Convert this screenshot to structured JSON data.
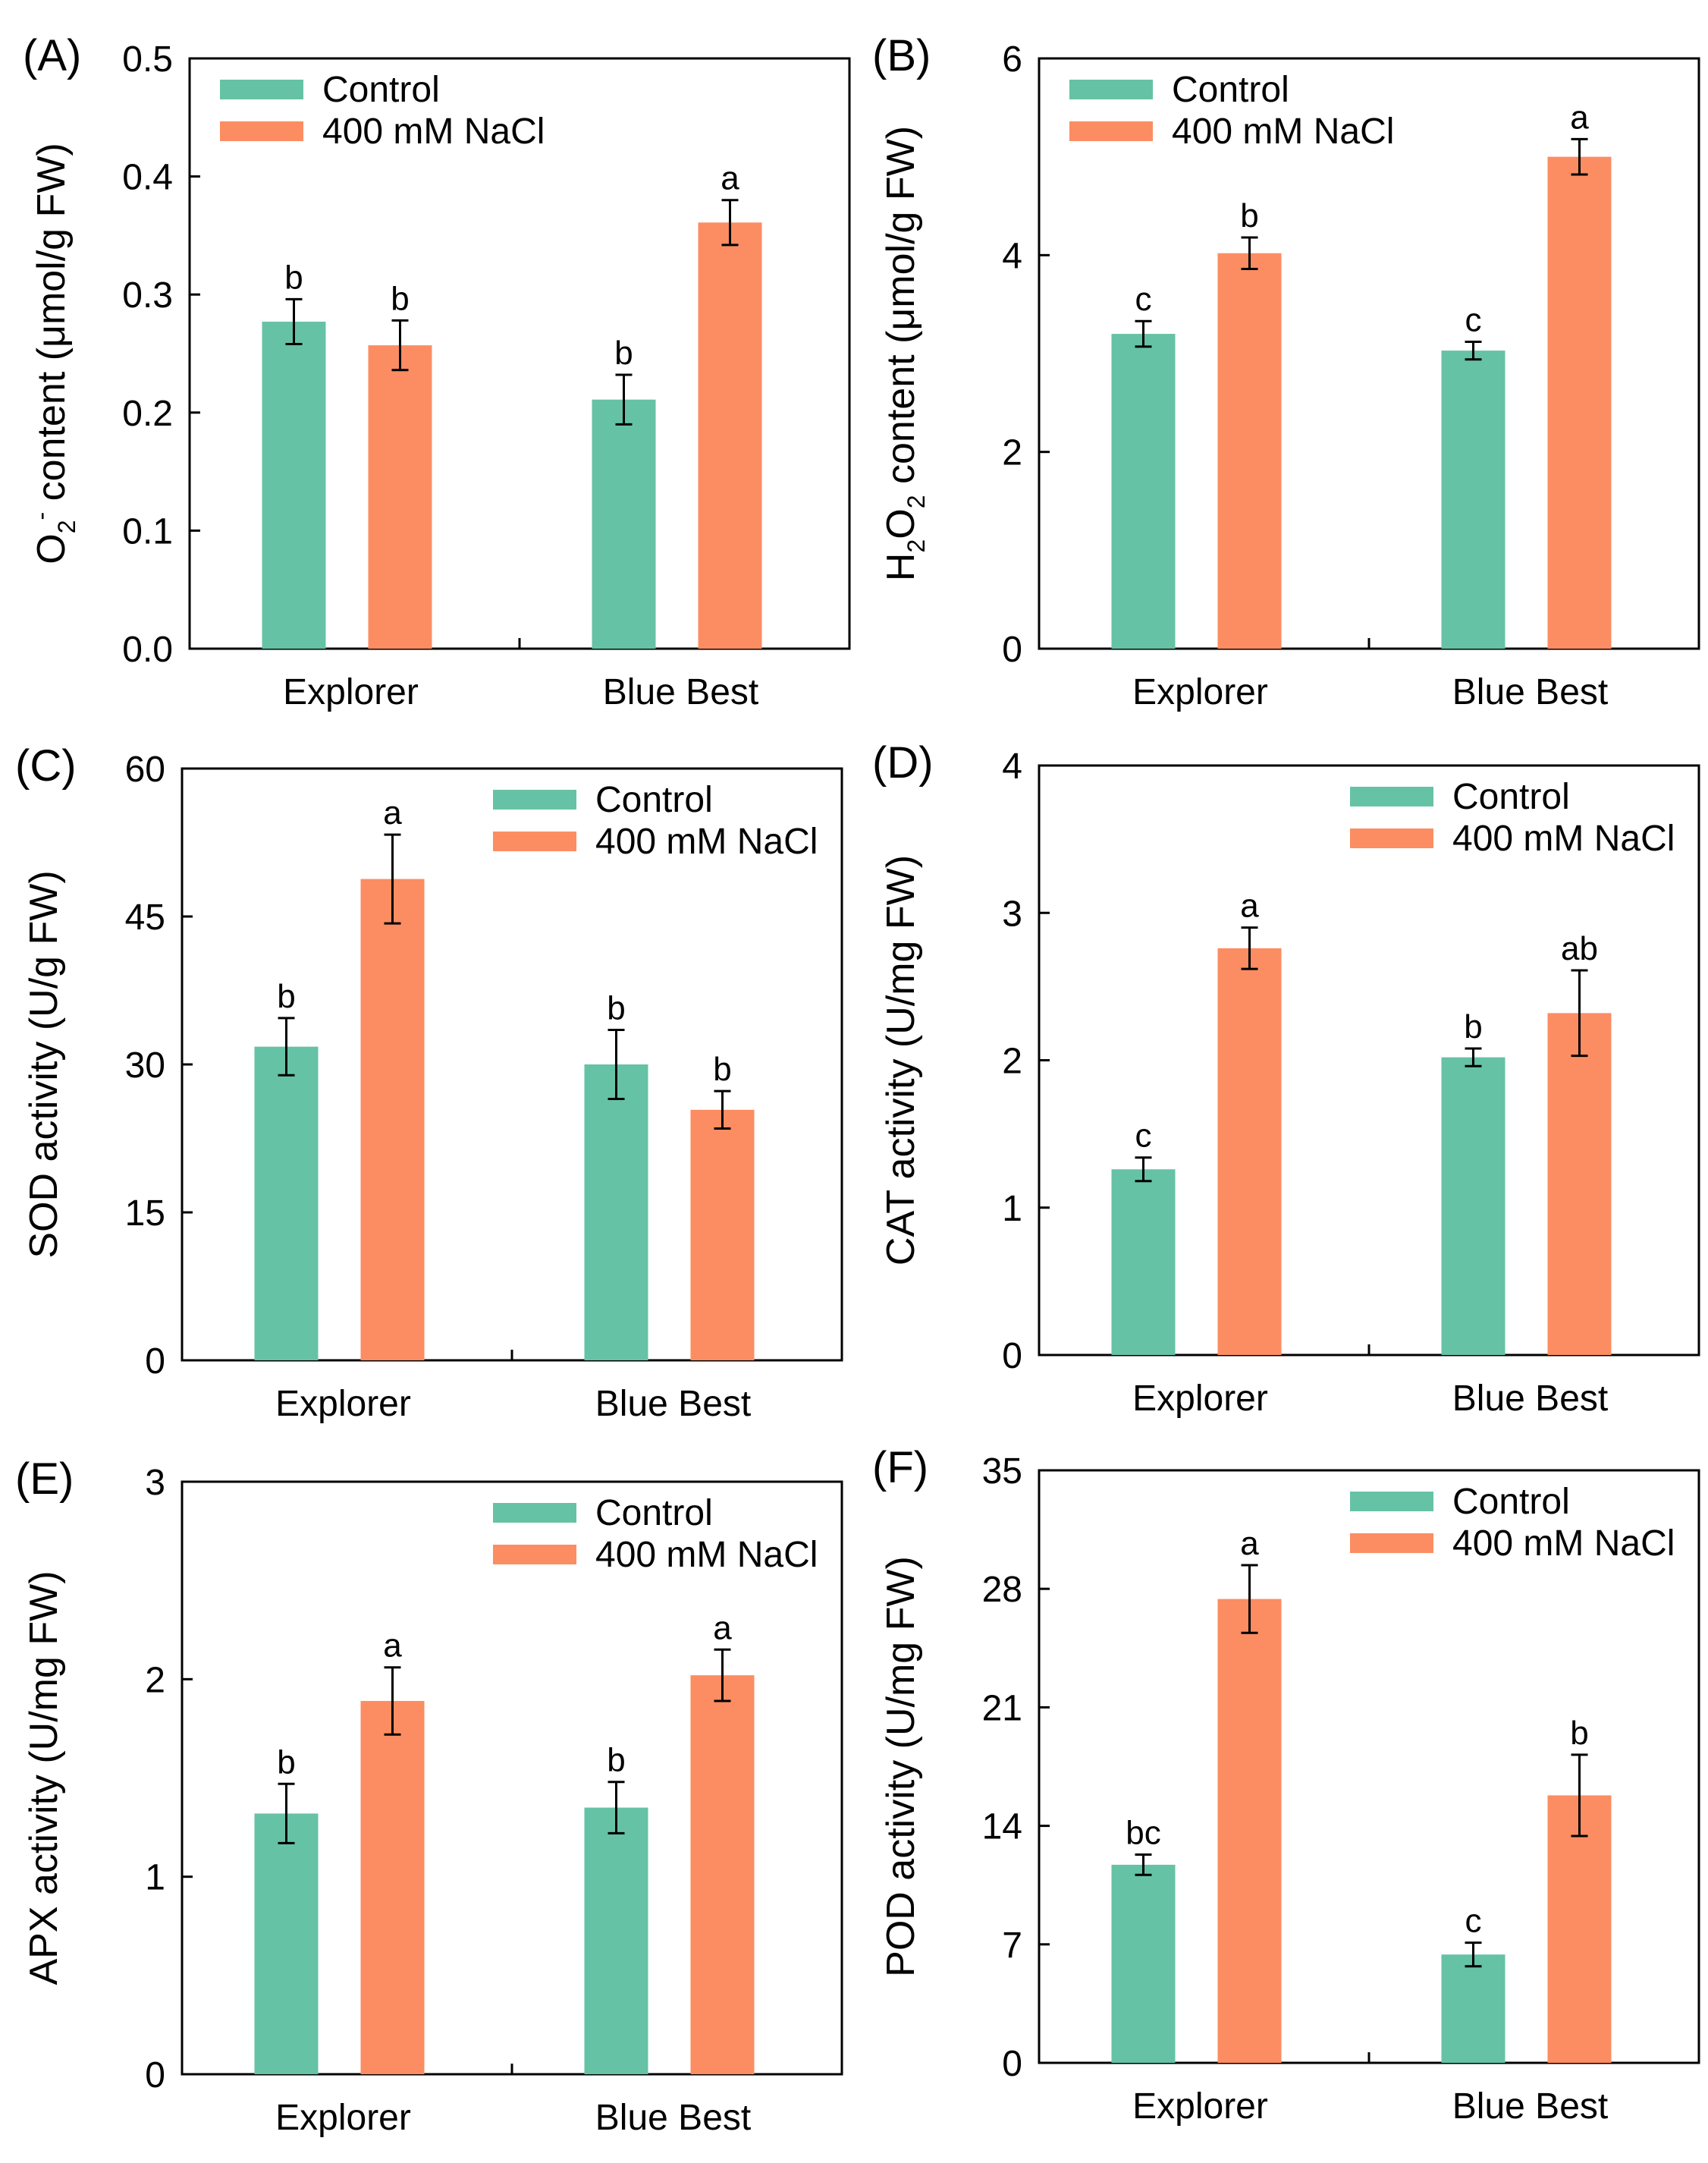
{
  "figure": {
    "colors": {
      "control": "#66c2a5",
      "nacl": "#fc8d62",
      "axis": "#000000"
    }
  },
  "chart_data": [
    {
      "type": "bar",
      "panel_label": "(A)",
      "ylabel": "O2- content (μmol/g FW)",
      "ylabel_parts": {
        "base": "O",
        "sub": "2",
        "sup": "-",
        "rest": " content (μmol/g FW)"
      },
      "ylim": [
        0,
        0.5
      ],
      "yticks": [
        "0.0",
        "0.1",
        "0.2",
        "0.3",
        "0.4",
        "0.5"
      ],
      "legend_position": "top-left",
      "categories": [
        "Explorer",
        "Blue Best"
      ],
      "series": [
        {
          "name": "Control",
          "values": [
            0.277,
            0.211
          ],
          "errors": [
            0.019,
            0.021
          ],
          "letters": [
            "b",
            "b"
          ]
        },
        {
          "name": "400 mM NaCl",
          "values": [
            0.257,
            0.361
          ],
          "errors": [
            0.021,
            0.019
          ],
          "letters": [
            "b",
            "a"
          ]
        }
      ]
    },
    {
      "type": "bar",
      "panel_label": "(B)",
      "ylabel": "H2O2 content (μmol/g FW)",
      "ylabel_parts": {
        "h": "H",
        "s1": "2",
        "o": "O",
        "s2": "2",
        "rest": " content (μmol/g FW)"
      },
      "ylim": [
        0,
        6
      ],
      "yticks": [
        "0",
        "2",
        "4",
        "6"
      ],
      "legend_position": "top-left",
      "categories": [
        "Explorer",
        "Blue Best"
      ],
      "series": [
        {
          "name": "Control",
          "values": [
            3.2,
            3.03
          ],
          "errors": [
            0.13,
            0.09
          ],
          "letters": [
            "c",
            "c"
          ]
        },
        {
          "name": "400 mM NaCl",
          "values": [
            4.02,
            5.0
          ],
          "errors": [
            0.16,
            0.18
          ],
          "letters": [
            "b",
            "a"
          ]
        }
      ]
    },
    {
      "type": "bar",
      "panel_label": "(C)",
      "ylabel": "SOD activity (U/g FW)",
      "ylim": [
        0,
        60
      ],
      "yticks": [
        "0",
        "15",
        "30",
        "45",
        "60"
      ],
      "legend_position": "top-right",
      "categories": [
        "Explorer",
        "Blue Best"
      ],
      "series": [
        {
          "name": "Control",
          "values": [
            31.8,
            30.0
          ],
          "errors": [
            2.9,
            3.5
          ],
          "letters": [
            "b",
            "b"
          ]
        },
        {
          "name": "400 mM NaCl",
          "values": [
            48.8,
            25.4
          ],
          "errors": [
            4.5,
            1.9
          ],
          "letters": [
            "a",
            "b"
          ]
        }
      ]
    },
    {
      "type": "bar",
      "panel_label": "(D)",
      "ylabel": "CAT activity (U/mg FW)",
      "ylim": [
        0,
        4
      ],
      "yticks": [
        "0",
        "1",
        "2",
        "3",
        "4"
      ],
      "legend_position": "top-right",
      "categories": [
        "Explorer",
        "Blue Best"
      ],
      "series": [
        {
          "name": "Control",
          "values": [
            1.26,
            2.02
          ],
          "errors": [
            0.08,
            0.06
          ],
          "letters": [
            "c",
            "b"
          ]
        },
        {
          "name": "400 mM NaCl",
          "values": [
            2.76,
            2.32
          ],
          "errors": [
            0.14,
            0.29
          ],
          "letters": [
            "a",
            "ab"
          ]
        }
      ]
    },
    {
      "type": "bar",
      "panel_label": "(E)",
      "ylabel": "APX activity (U/mg FW)",
      "ylim": [
        0,
        3
      ],
      "yticks": [
        "0",
        "1",
        "2",
        "3"
      ],
      "legend_position": "top-right",
      "categories": [
        "Explorer",
        "Blue Best"
      ],
      "series": [
        {
          "name": "Control",
          "values": [
            1.32,
            1.35
          ],
          "errors": [
            0.15,
            0.13
          ],
          "letters": [
            "b",
            "b"
          ]
        },
        {
          "name": "400 mM NaCl",
          "values": [
            1.89,
            2.02
          ],
          "errors": [
            0.17,
            0.13
          ],
          "letters": [
            "a",
            "a"
          ]
        }
      ]
    },
    {
      "type": "bar",
      "panel_label": "(F)",
      "ylabel": "POD activity (U/mg FW)",
      "ylim": [
        0,
        35
      ],
      "yticks": [
        "0",
        "7",
        "14",
        "21",
        "28",
        "35"
      ],
      "legend_position": "top-right",
      "categories": [
        "Explorer",
        "Blue Best"
      ],
      "series": [
        {
          "name": "Control",
          "values": [
            11.7,
            6.4
          ],
          "errors": [
            0.6,
            0.7
          ],
          "letters": [
            "bc",
            "c"
          ]
        },
        {
          "name": "400 mM NaCl",
          "values": [
            27.4,
            15.8
          ],
          "errors": [
            2.0,
            2.4
          ],
          "letters": [
            "a",
            "b"
          ]
        }
      ]
    }
  ]
}
